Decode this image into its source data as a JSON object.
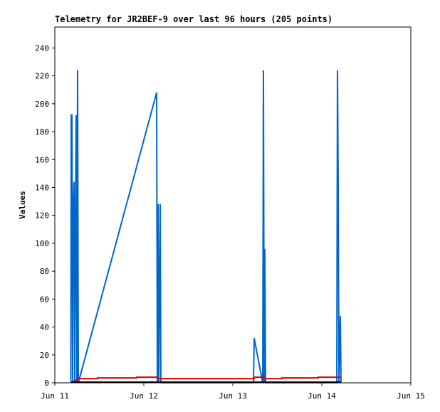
{
  "chart_data": {
    "type": "line",
    "title": "Telemetry for JR2BEF-9 over last 96 hours (205 points)",
    "y_label": "Values",
    "xlim": [
      11,
      15
    ],
    "xticks": [
      {
        "value": 11,
        "label": "Jun 11"
      },
      {
        "value": 12,
        "label": "Jun 12"
      },
      {
        "value": 13,
        "label": "Jun 13"
      },
      {
        "value": 14,
        "label": "Jun 14"
      },
      {
        "value": 15,
        "label": "Jun 15"
      }
    ],
    "ylim": [
      0,
      255
    ],
    "yticks": [
      0,
      20,
      40,
      60,
      80,
      100,
      120,
      140,
      160,
      180,
      200,
      220,
      240
    ],
    "series": [
      {
        "color": "#0066cc",
        "x": [
          11.18,
          11.184,
          11.192,
          11.2,
          11.208,
          11.216,
          11.224,
          11.232,
          11.24,
          11.248,
          11.256,
          11.264,
          12.144,
          12.152,
          12.16,
          12.168,
          12.184,
          12.192,
          13.232,
          13.24,
          13.336,
          13.344,
          13.352,
          13.36,
          13.368,
          14.168,
          14.176,
          14.184,
          14.192,
          14.2,
          14.208,
          14.216
        ],
        "values": [
          0,
          192,
          192,
          0,
          128,
          144,
          0,
          112,
          192,
          0,
          224,
          0,
          208,
          0,
          128,
          0,
          128,
          0,
          0,
          32,
          0,
          224,
          0,
          96,
          0,
          0,
          224,
          144,
          0,
          24,
          48,
          0
        ]
      },
      {
        "color": "#dd0000",
        "x": [
          11.184,
          11.264,
          11.48,
          11.48,
          11.92,
          11.92,
          12.152,
          12.152,
          13.24,
          13.24,
          13.344,
          13.344,
          13.55,
          13.55,
          13.96,
          13.96,
          14.216
        ],
        "values": [
          0,
          3,
          3,
          3.5,
          3.5,
          4,
          4,
          3,
          3,
          4,
          4,
          3,
          3,
          3.5,
          3.5,
          4,
          4
        ]
      },
      {
        "color": "#000000",
        "x": [
          11.184,
          14.216
        ],
        "values": [
          0.5,
          0.5
        ]
      }
    ]
  }
}
